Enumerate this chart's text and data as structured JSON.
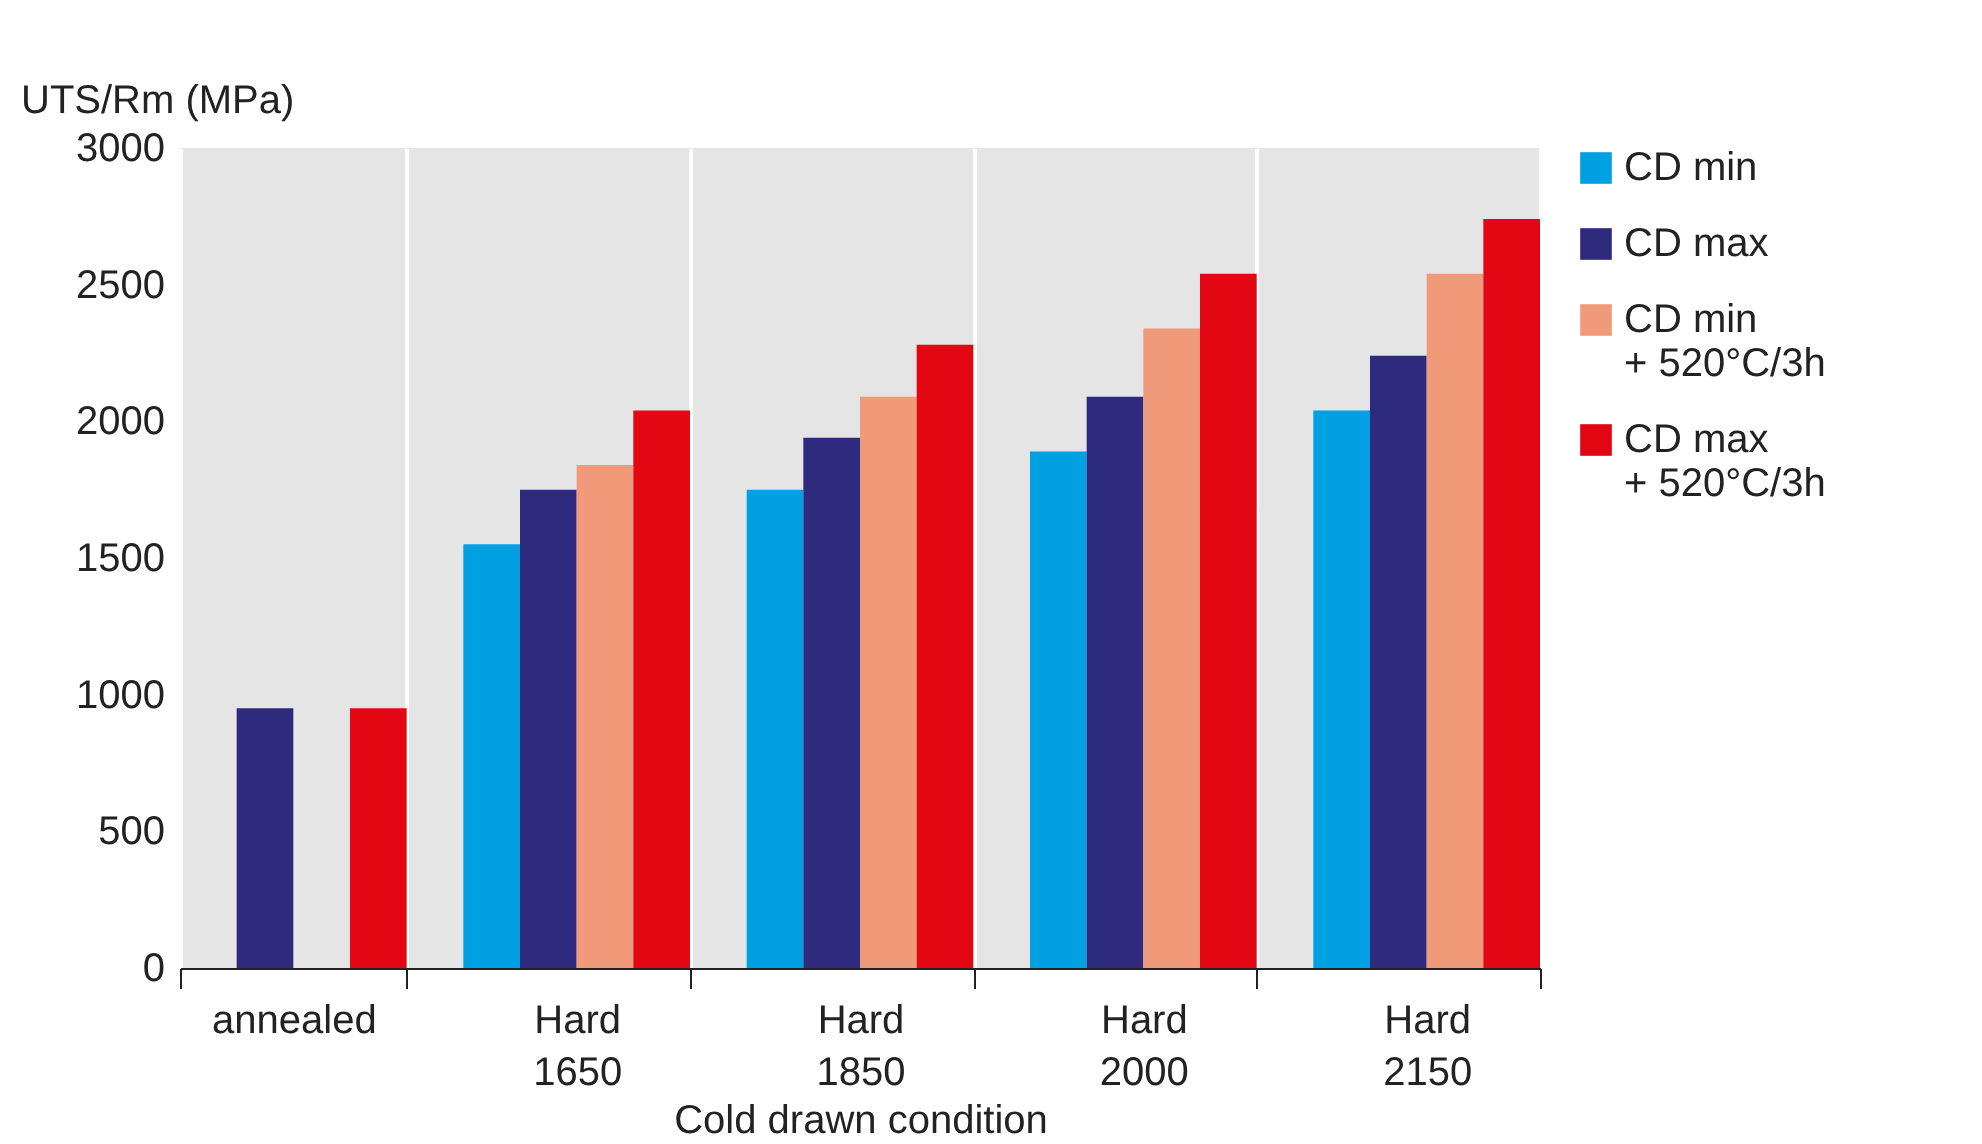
{
  "chart_data": {
    "type": "bar",
    "ylabel": "UTS/Rm (MPa)",
    "xlabel": "Cold drawn condition",
    "categories": [
      "annealed",
      "Hard\n1650",
      "Hard\n1850",
      "Hard\n2000",
      "Hard\n2150"
    ],
    "series": [
      {
        "name": "CD min",
        "color": "#00a0e3",
        "values": [
          null,
          1550,
          1750,
          1890,
          2040
        ]
      },
      {
        "name": "CD max",
        "color": "#2e2a7e",
        "values": [
          950,
          1750,
          1940,
          2090,
          2240
        ]
      },
      {
        "name": "CD min\n+ 520°C/3h",
        "color": "#f09a7a",
        "values": [
          null,
          1840,
          2090,
          2340,
          2540
        ]
      },
      {
        "name": "CD max\n+ 520°C/3h",
        "color": "#e30613",
        "values": [
          950,
          2040,
          2280,
          2540,
          2740
        ]
      }
    ],
    "ylim": [
      0,
      3000
    ],
    "yticks": [
      0,
      500,
      1000,
      1500,
      2000,
      2500,
      3000
    ],
    "grid": "x",
    "legend": "right"
  }
}
